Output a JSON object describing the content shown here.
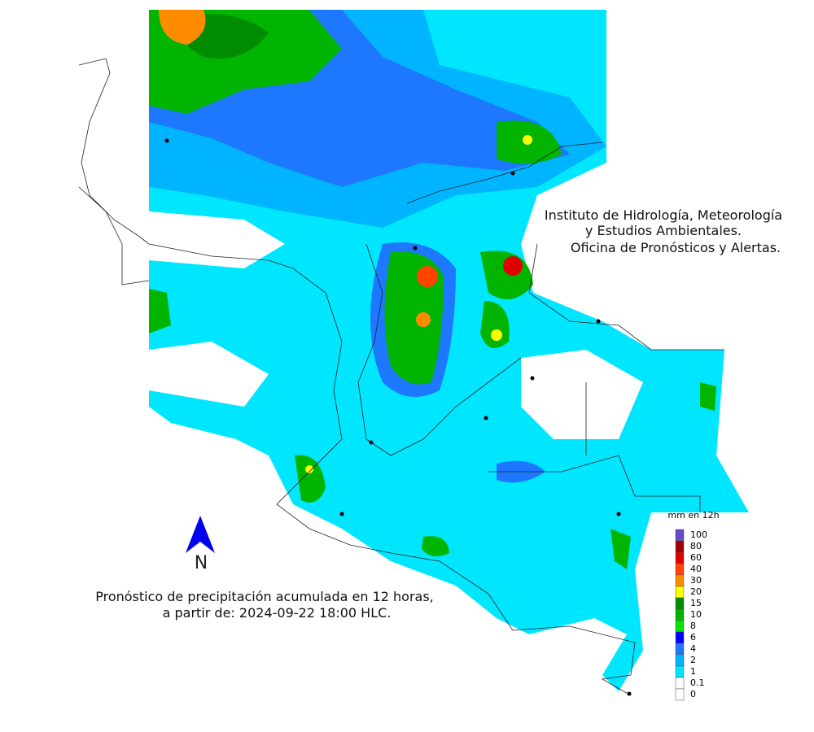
{
  "header": {
    "lines": [
      "Instituto de Hidrología, Meteorología",
      "y Estudios Ambientales.",
      "Oficina de Pronósticos y Alertas."
    ]
  },
  "caption": {
    "lines": [
      "Pronóstico de precipitación acumulada en 12 horas,",
      "a partir de: 2024-09-22 18:00 HLC."
    ]
  },
  "north_label": "N",
  "legend": {
    "title": "mm en 12h",
    "levels": [
      {
        "value": 100,
        "color": "#6a48c8"
      },
      {
        "value": 80,
        "color": "#a00000"
      },
      {
        "value": 60,
        "color": "#e00000"
      },
      {
        "value": 40,
        "color": "#ff4500"
      },
      {
        "value": 30,
        "color": "#ff8c00"
      },
      {
        "value": 20,
        "color": "#ffff00"
      },
      {
        "value": 15,
        "color": "#008c00"
      },
      {
        "value": 10,
        "color": "#00b400"
      },
      {
        "value": 8,
        "color": "#00e600"
      },
      {
        "value": 6,
        "color": "#0000ff"
      },
      {
        "value": 4,
        "color": "#1e78ff"
      },
      {
        "value": 2,
        "color": "#00b4ff"
      },
      {
        "value": 1,
        "color": "#00e6ff"
      },
      {
        "value": 0.1,
        "color": "#ffffff"
      },
      {
        "value": 0,
        "color": "#ffffff"
      }
    ]
  }
}
